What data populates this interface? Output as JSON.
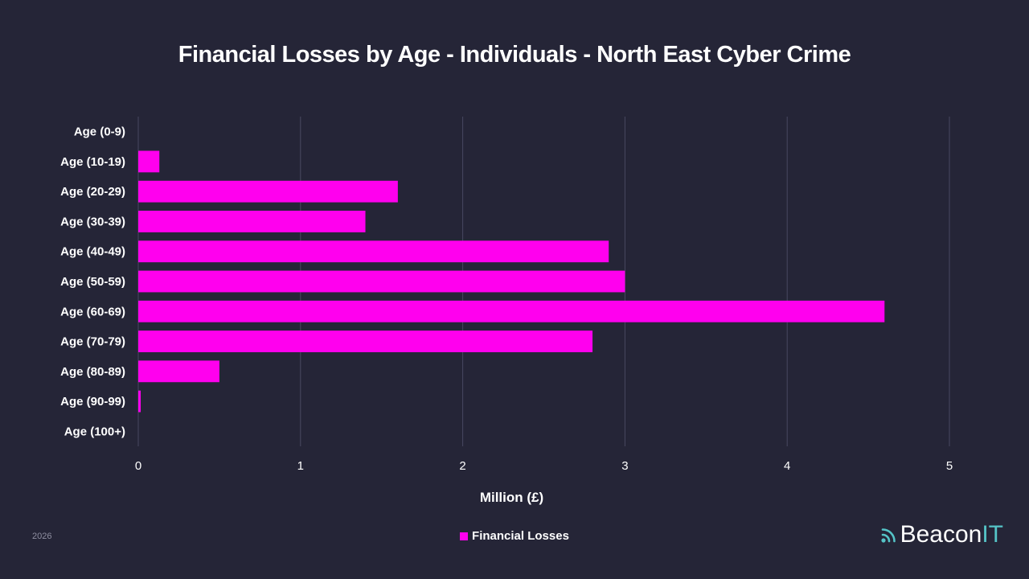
{
  "chart_data": {
    "type": "bar",
    "orientation": "horizontal",
    "title": "Financial Losses by Age - Individuals - North East Cyber Crime",
    "xlabel": "Million (£)",
    "ylabel": "",
    "xlim": [
      0,
      5
    ],
    "xticks": [
      "0",
      "1",
      "2",
      "3",
      "4",
      "5"
    ],
    "categories": [
      "Age (0-9)",
      "Age (10-19)",
      "Age (20-29)",
      "Age (30-39)",
      "Age (40-49)",
      "Age (50-59)",
      "Age (60-69)",
      "Age (70-79)",
      "Age (80-89)",
      "Age (90-99)",
      "Age (100+)"
    ],
    "series": [
      {
        "name": "Financial Losses",
        "values": [
          0,
          0.13,
          1.6,
          1.4,
          2.9,
          3.0,
          4.6,
          2.8,
          0.5,
          0.015,
          0
        ]
      }
    ],
    "grid": true,
    "legend": "bottom-center"
  },
  "colors": {
    "background": "#252537",
    "bar": "#ff00ee",
    "grid": "#484860",
    "brand_accent": "#55c4c7"
  },
  "footer": {
    "year": "2026",
    "brand_main": "Beacon",
    "brand_accent": "IT",
    "brand_icon": "signal-waves-icon"
  }
}
